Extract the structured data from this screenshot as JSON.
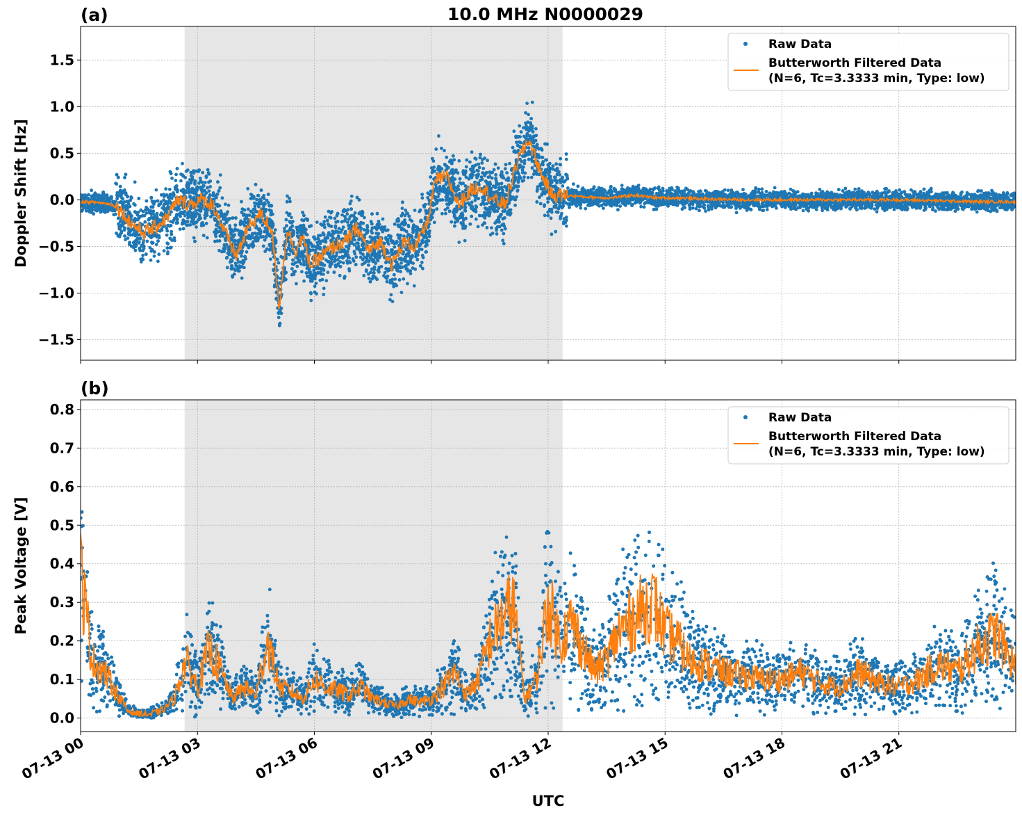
{
  "figure": {
    "title": "10.0 MHz N0000029",
    "xlabel": "UTC",
    "colors": {
      "raw": "#1f77b4",
      "filtered": "#ff7f0e",
      "shade": "#e6e6e6",
      "grid": "#b0b0b0"
    },
    "x_ticks": [
      "07-13 00",
      "07-13 03",
      "07-13 06",
      "07-13 09",
      "07-13 12",
      "07-13 15",
      "07-13 18",
      "07-13 21"
    ],
    "legend": {
      "raw_label": "Raw Data",
      "filtered_label_line1": "Butterworth Filtered Data",
      "filtered_label_line2": "(N=6, Tc=3.3333 min, Type: low)"
    }
  },
  "chart_data": [
    {
      "type": "scatter",
      "panel_label": "(a)",
      "ylabel": "Doppler Shift [Hz]",
      "xlim_hours": [
        0,
        24
      ],
      "ylim": [
        -1.72,
        1.86
      ],
      "y_ticks": [
        -1.5,
        -1.0,
        -0.5,
        0.0,
        0.5,
        1.0,
        1.5
      ],
      "y_tick_labels": [
        "−1.5",
        "−1.0",
        "−0.5",
        "0.0",
        "0.5",
        "1.0",
        "1.5"
      ],
      "shaded_span_hours": [
        2.67,
        12.37
      ],
      "grid": true,
      "legend_position": "top-right",
      "series": [
        {
          "name": "Raw Data",
          "kind": "points"
        },
        {
          "name": "Butterworth Filtered Data (N=6, Tc=3.3333 min, Type: low)",
          "kind": "line",
          "x_hours": [
            0,
            0.5,
            0.8,
            1.0,
            1.3,
            1.6,
            1.9,
            2.2,
            2.5,
            2.8,
            3.1,
            3.4,
            3.7,
            4.0,
            4.3,
            4.6,
            4.9,
            5.1,
            5.3,
            5.5,
            5.7,
            5.9,
            6.2,
            6.5,
            6.8,
            7.1,
            7.4,
            7.7,
            8.0,
            8.3,
            8.6,
            8.9,
            9.1,
            9.4,
            9.7,
            10.0,
            10.3,
            10.6,
            10.9,
            11.2,
            11.5,
            11.8,
            12.1,
            12.4,
            13.0,
            13.6,
            14.2,
            14.8,
            15.4,
            16.0,
            17.0,
            18.0,
            19.0,
            20.0,
            21.0,
            22.0,
            23.0,
            24.0
          ],
          "values": [
            -0.02,
            -0.03,
            -0.05,
            -0.1,
            -0.25,
            -0.35,
            -0.3,
            -0.2,
            0.0,
            -0.05,
            0.0,
            -0.05,
            -0.35,
            -0.6,
            -0.3,
            -0.15,
            -0.3,
            -1.15,
            -0.3,
            -0.55,
            -0.4,
            -0.7,
            -0.6,
            -0.5,
            -0.45,
            -0.3,
            -0.55,
            -0.45,
            -0.7,
            -0.45,
            -0.5,
            -0.25,
            0.2,
            0.25,
            -0.05,
            0.1,
            0.15,
            0.0,
            -0.05,
            0.4,
            0.65,
            0.3,
            0.05,
            0.05,
            0.03,
            0.02,
            0.05,
            0.02,
            0.02,
            0.01,
            0.0,
            0.0,
            0.0,
            0.0,
            0.0,
            -0.01,
            -0.02,
            -0.02
          ]
        }
      ]
    },
    {
      "type": "scatter",
      "panel_label": "(b)",
      "ylabel": "Peak Voltage [V]",
      "xlim_hours": [
        0,
        24
      ],
      "ylim": [
        -0.035,
        0.825
      ],
      "y_ticks": [
        0.0,
        0.1,
        0.2,
        0.3,
        0.4,
        0.5,
        0.6,
        0.7,
        0.8
      ],
      "y_tick_labels": [
        "0.0",
        "0.1",
        "0.2",
        "0.3",
        "0.4",
        "0.5",
        "0.6",
        "0.7",
        "0.8"
      ],
      "shaded_span_hours": [
        2.67,
        12.37
      ],
      "grid": true,
      "legend_position": "top-right",
      "series": [
        {
          "name": "Raw Data",
          "kind": "points"
        },
        {
          "name": "Butterworth Filtered Data (N=6, Tc=3.3333 min, Type: low)",
          "kind": "line",
          "x_hours": [
            0,
            0.1,
            0.3,
            0.6,
            0.9,
            1.2,
            1.5,
            1.8,
            2.1,
            2.4,
            2.7,
            3.0,
            3.3,
            3.6,
            3.9,
            4.2,
            4.5,
            4.8,
            5.1,
            5.4,
            5.7,
            6.0,
            6.3,
            6.6,
            6.9,
            7.2,
            7.5,
            7.8,
            8.1,
            8.4,
            8.7,
            9.0,
            9.3,
            9.6,
            9.9,
            10.2,
            10.5,
            10.8,
            11.1,
            11.4,
            11.7,
            12.0,
            12.3,
            12.6,
            12.9,
            13.2,
            13.5,
            13.8,
            14.1,
            14.4,
            14.7,
            15.0,
            15.3,
            15.6,
            16.0,
            16.5,
            17.0,
            17.5,
            18.0,
            18.5,
            19.0,
            19.5,
            20.0,
            20.5,
            21.0,
            21.5,
            22.0,
            22.5,
            23.0,
            23.5,
            24.0
          ],
          "values": [
            0.38,
            0.3,
            0.15,
            0.12,
            0.07,
            0.02,
            0.01,
            0.01,
            0.02,
            0.05,
            0.15,
            0.08,
            0.18,
            0.12,
            0.05,
            0.08,
            0.06,
            0.2,
            0.08,
            0.07,
            0.05,
            0.1,
            0.08,
            0.07,
            0.06,
            0.08,
            0.05,
            0.04,
            0.03,
            0.05,
            0.04,
            0.05,
            0.08,
            0.12,
            0.06,
            0.1,
            0.2,
            0.25,
            0.3,
            0.05,
            0.1,
            0.3,
            0.2,
            0.25,
            0.18,
            0.12,
            0.15,
            0.22,
            0.25,
            0.28,
            0.3,
            0.22,
            0.2,
            0.15,
            0.14,
            0.12,
            0.11,
            0.1,
            0.1,
            0.12,
            0.09,
            0.08,
            0.12,
            0.09,
            0.08,
            0.1,
            0.14,
            0.12,
            0.18,
            0.22,
            0.13
          ]
        }
      ]
    }
  ]
}
